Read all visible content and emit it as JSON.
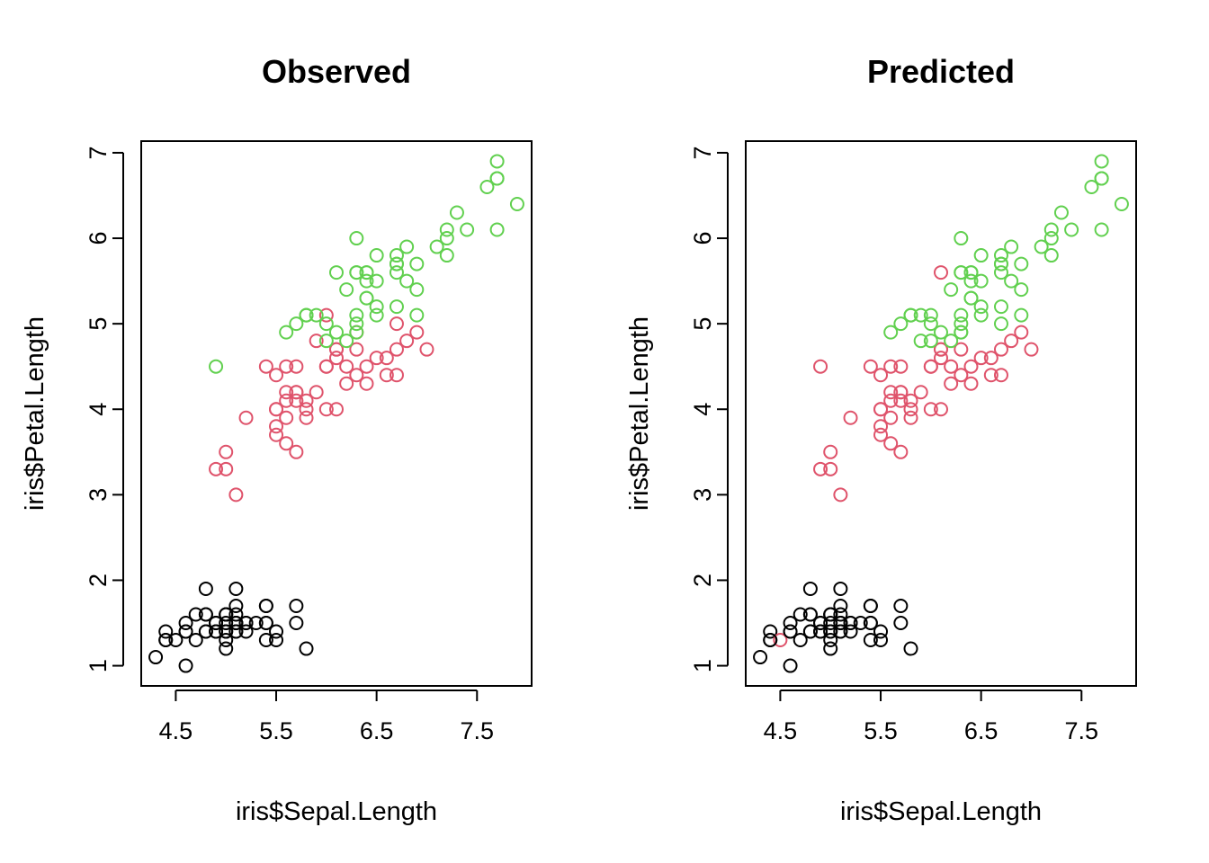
{
  "colors": {
    "setosa": "#000000",
    "versicolor": "#DF536B",
    "virginica": "#61D04F"
  },
  "chart_data": [
    {
      "type": "scatter",
      "title": "Observed",
      "xlabel": "iris$Sepal.Length",
      "ylabel": "iris$Petal.Length",
      "xlim": [
        4.3,
        7.9
      ],
      "ylim": [
        1.0,
        6.9
      ],
      "xticks": [
        4.5,
        5.5,
        6.5,
        7.5
      ],
      "yticks": [
        1,
        2,
        3,
        4,
        5,
        6,
        7
      ],
      "grid": false,
      "color_key": [
        "setosa",
        "versicolor",
        "virginica"
      ],
      "x": [
        5.1,
        4.9,
        4.7,
        4.6,
        5.0,
        5.4,
        4.6,
        5.0,
        4.4,
        4.9,
        5.4,
        4.8,
        4.8,
        4.3,
        5.8,
        5.7,
        5.4,
        5.1,
        5.7,
        5.1,
        5.4,
        5.1,
        4.6,
        5.1,
        4.8,
        5.0,
        5.0,
        5.2,
        5.2,
        4.7,
        4.8,
        5.4,
        5.2,
        5.5,
        4.9,
        5.0,
        5.5,
        4.9,
        4.4,
        5.1,
        5.0,
        4.5,
        4.4,
        5.0,
        5.1,
        4.8,
        5.1,
        4.6,
        5.3,
        5.0,
        7.0,
        6.4,
        6.9,
        5.5,
        6.5,
        5.7,
        6.3,
        4.9,
        6.6,
        5.2,
        5.0,
        5.9,
        6.0,
        6.1,
        5.6,
        6.7,
        5.6,
        5.8,
        6.2,
        5.6,
        5.9,
        6.1,
        6.3,
        6.1,
        6.4,
        6.6,
        6.8,
        6.7,
        6.0,
        5.7,
        5.5,
        5.5,
        5.8,
        6.0,
        5.4,
        6.0,
        6.7,
        6.3,
        5.6,
        5.5,
        5.5,
        6.1,
        5.8,
        5.0,
        5.6,
        5.7,
        5.7,
        6.2,
        5.1,
        5.7,
        6.3,
        5.8,
        7.1,
        6.3,
        6.5,
        7.6,
        4.9,
        7.3,
        6.7,
        7.2,
        6.5,
        6.4,
        6.8,
        5.7,
        5.8,
        6.4,
        6.5,
        7.7,
        7.7,
        6.0,
        6.9,
        5.6,
        7.7,
        6.3,
        6.7,
        7.2,
        6.2,
        6.1,
        6.4,
        7.2,
        7.4,
        7.9,
        6.4,
        6.3,
        6.1,
        7.7,
        6.3,
        6.4,
        6.0,
        6.9,
        6.7,
        6.9,
        5.8,
        6.8,
        6.7,
        6.7,
        6.3,
        6.5,
        6.2,
        5.9
      ],
      "y": [
        1.4,
        1.4,
        1.3,
        1.5,
        1.4,
        1.7,
        1.4,
        1.5,
        1.4,
        1.5,
        1.5,
        1.6,
        1.4,
        1.1,
        1.2,
        1.5,
        1.3,
        1.4,
        1.7,
        1.5,
        1.7,
        1.5,
        1.0,
        1.7,
        1.9,
        1.6,
        1.6,
        1.5,
        1.4,
        1.6,
        1.6,
        1.5,
        1.5,
        1.4,
        1.5,
        1.2,
        1.3,
        1.4,
        1.3,
        1.5,
        1.3,
        1.3,
        1.3,
        1.6,
        1.9,
        1.4,
        1.6,
        1.4,
        1.5,
        1.4,
        4.7,
        4.5,
        4.9,
        4.0,
        4.6,
        4.5,
        4.7,
        3.3,
        4.6,
        3.9,
        3.5,
        4.2,
        4.0,
        4.7,
        3.6,
        4.4,
        4.5,
        4.1,
        4.5,
        3.9,
        4.8,
        4.0,
        4.9,
        4.7,
        4.3,
        4.4,
        4.8,
        5.0,
        4.5,
        3.5,
        3.8,
        3.7,
        3.9,
        5.1,
        4.5,
        4.5,
        4.7,
        4.4,
        4.1,
        4.0,
        4.4,
        4.6,
        4.0,
        3.3,
        4.2,
        4.2,
        4.2,
        4.3,
        3.0,
        4.1,
        6.0,
        5.1,
        5.9,
        5.6,
        5.8,
        6.6,
        4.5,
        6.3,
        5.8,
        6.1,
        5.1,
        5.3,
        5.5,
        5.0,
        5.1,
        5.3,
        5.5,
        6.7,
        6.9,
        5.0,
        5.7,
        4.9,
        6.7,
        4.9,
        5.7,
        6.0,
        4.8,
        4.9,
        5.6,
        5.8,
        6.1,
        6.4,
        5.6,
        5.1,
        5.6,
        6.1,
        5.6,
        5.5,
        4.8,
        5.4,
        5.6,
        5.1,
        5.1,
        5.9,
        5.7,
        5.2,
        5.0,
        5.2,
        5.4,
        5.1
      ],
      "class": [
        0,
        0,
        0,
        0,
        0,
        0,
        0,
        0,
        0,
        0,
        0,
        0,
        0,
        0,
        0,
        0,
        0,
        0,
        0,
        0,
        0,
        0,
        0,
        0,
        0,
        0,
        0,
        0,
        0,
        0,
        0,
        0,
        0,
        0,
        0,
        0,
        0,
        0,
        0,
        0,
        0,
        0,
        0,
        0,
        0,
        0,
        0,
        0,
        0,
        0,
        1,
        1,
        1,
        1,
        1,
        1,
        1,
        1,
        1,
        1,
        1,
        1,
        1,
        1,
        1,
        1,
        1,
        1,
        1,
        1,
        1,
        1,
        1,
        1,
        1,
        1,
        1,
        1,
        1,
        1,
        1,
        1,
        1,
        1,
        1,
        1,
        1,
        1,
        1,
        1,
        1,
        1,
        1,
        1,
        1,
        1,
        1,
        1,
        1,
        1,
        2,
        2,
        2,
        2,
        2,
        2,
        2,
        2,
        2,
        2,
        2,
        2,
        2,
        2,
        2,
        2,
        2,
        2,
        2,
        2,
        2,
        2,
        2,
        2,
        2,
        2,
        2,
        2,
        2,
        2,
        2,
        2,
        2,
        2,
        2,
        2,
        2,
        2,
        2,
        2,
        2,
        2,
        2,
        2,
        2,
        2,
        2,
        2,
        2,
        2
      ]
    },
    {
      "type": "scatter",
      "title": "Predicted",
      "xlabel": "iris$Sepal.Length",
      "ylabel": "iris$Petal.Length",
      "xlim": [
        4.3,
        7.9
      ],
      "ylim": [
        1.0,
        6.9
      ],
      "xticks": [
        4.5,
        5.5,
        6.5,
        7.5
      ],
      "yticks": [
        1,
        2,
        3,
        4,
        5,
        6,
        7
      ],
      "grid": false,
      "color_key": [
        "setosa",
        "versicolor",
        "virginica"
      ],
      "x": [
        5.1,
        4.9,
        4.7,
        4.6,
        5.0,
        5.4,
        4.6,
        5.0,
        4.4,
        4.9,
        5.4,
        4.8,
        4.8,
        4.3,
        5.8,
        5.7,
        5.4,
        5.1,
        5.7,
        5.1,
        5.4,
        5.1,
        4.6,
        5.1,
        4.8,
        5.0,
        5.0,
        5.2,
        5.2,
        4.7,
        4.8,
        5.4,
        5.2,
        5.5,
        4.9,
        5.0,
        5.5,
        4.9,
        4.4,
        5.1,
        5.0,
        4.5,
        4.4,
        5.0,
        5.1,
        4.8,
        5.1,
        4.6,
        5.3,
        5.0,
        7.0,
        6.4,
        6.9,
        5.5,
        6.5,
        5.7,
        6.3,
        4.9,
        6.6,
        5.2,
        5.0,
        5.9,
        6.0,
        6.1,
        5.6,
        6.7,
        5.6,
        5.8,
        6.2,
        5.6,
        5.9,
        6.1,
        6.3,
        6.1,
        6.4,
        6.6,
        6.8,
        6.7,
        6.0,
        5.7,
        5.5,
        5.5,
        5.8,
        6.0,
        5.4,
        6.0,
        6.7,
        6.3,
        5.6,
        5.5,
        5.5,
        6.1,
        5.8,
        5.0,
        5.6,
        5.7,
        5.7,
        6.2,
        5.1,
        5.7,
        6.3,
        5.8,
        7.1,
        6.3,
        6.5,
        7.6,
        4.9,
        7.3,
        6.7,
        7.2,
        6.5,
        6.4,
        6.8,
        5.7,
        5.8,
        6.4,
        6.5,
        7.7,
        7.7,
        6.0,
        6.9,
        5.6,
        7.7,
        6.3,
        6.7,
        7.2,
        6.2,
        6.1,
        6.4,
        7.2,
        7.4,
        7.9,
        6.4,
        6.3,
        6.1,
        7.7,
        6.3,
        6.4,
        6.0,
        6.9,
        6.7,
        6.9,
        5.8,
        6.8,
        6.7,
        6.7,
        6.3,
        6.5,
        6.2,
        5.9
      ],
      "y": [
        1.4,
        1.4,
        1.3,
        1.5,
        1.4,
        1.7,
        1.4,
        1.5,
        1.4,
        1.5,
        1.5,
        1.6,
        1.4,
        1.1,
        1.2,
        1.5,
        1.3,
        1.4,
        1.7,
        1.5,
        1.7,
        1.5,
        1.0,
        1.7,
        1.9,
        1.6,
        1.6,
        1.5,
        1.4,
        1.6,
        1.6,
        1.5,
        1.5,
        1.4,
        1.5,
        1.2,
        1.3,
        1.4,
        1.3,
        1.5,
        1.3,
        1.3,
        1.3,
        1.6,
        1.9,
        1.4,
        1.6,
        1.4,
        1.5,
        1.4,
        4.7,
        4.5,
        4.9,
        4.0,
        4.6,
        4.5,
        4.7,
        3.3,
        4.6,
        3.9,
        3.5,
        4.2,
        4.0,
        4.7,
        3.6,
        4.4,
        4.5,
        4.1,
        4.5,
        3.9,
        4.8,
        4.0,
        4.9,
        4.7,
        4.3,
        4.4,
        4.8,
        5.0,
        4.5,
        3.5,
        3.8,
        3.7,
        3.9,
        5.1,
        4.5,
        4.5,
        4.7,
        4.4,
        4.1,
        4.0,
        4.4,
        4.6,
        4.0,
        3.3,
        4.2,
        4.2,
        4.2,
        4.3,
        3.0,
        4.1,
        6.0,
        5.1,
        5.9,
        5.6,
        5.8,
        6.6,
        4.5,
        6.3,
        5.8,
        6.1,
        5.1,
        5.3,
        5.5,
        5.0,
        5.1,
        5.3,
        5.5,
        6.7,
        6.9,
        5.0,
        5.7,
        4.9,
        6.7,
        4.9,
        5.7,
        6.0,
        4.8,
        4.9,
        5.6,
        5.8,
        6.1,
        6.4,
        5.6,
        5.1,
        5.6,
        6.1,
        5.6,
        5.5,
        4.8,
        5.4,
        5.6,
        5.1,
        5.1,
        5.9,
        5.7,
        5.2,
        5.0,
        5.2,
        5.4,
        5.1
      ],
      "class": [
        0,
        0,
        0,
        0,
        0,
        0,
        0,
        0,
        0,
        0,
        0,
        0,
        0,
        0,
        0,
        0,
        0,
        0,
        0,
        0,
        0,
        0,
        0,
        0,
        0,
        0,
        0,
        0,
        0,
        0,
        0,
        0,
        0,
        0,
        0,
        0,
        0,
        0,
        0,
        0,
        0,
        1,
        0,
        0,
        0,
        0,
        0,
        0,
        0,
        0,
        1,
        1,
        1,
        1,
        1,
        1,
        1,
        1,
        1,
        1,
        1,
        1,
        1,
        1,
        1,
        1,
        1,
        1,
        1,
        1,
        2,
        1,
        2,
        1,
        1,
        1,
        1,
        2,
        1,
        1,
        1,
        1,
        1,
        2,
        1,
        1,
        1,
        1,
        1,
        1,
        1,
        1,
        1,
        1,
        1,
        1,
        1,
        1,
        1,
        1,
        2,
        2,
        2,
        2,
        2,
        2,
        1,
        2,
        2,
        2,
        2,
        2,
        2,
        2,
        2,
        2,
        2,
        2,
        2,
        2,
        2,
        2,
        2,
        2,
        2,
        2,
        2,
        2,
        2,
        2,
        2,
        2,
        2,
        2,
        1,
        2,
        2,
        2,
        2,
        2,
        2,
        2,
        2,
        2,
        2,
        2,
        2,
        2,
        2,
        2
      ]
    }
  ]
}
